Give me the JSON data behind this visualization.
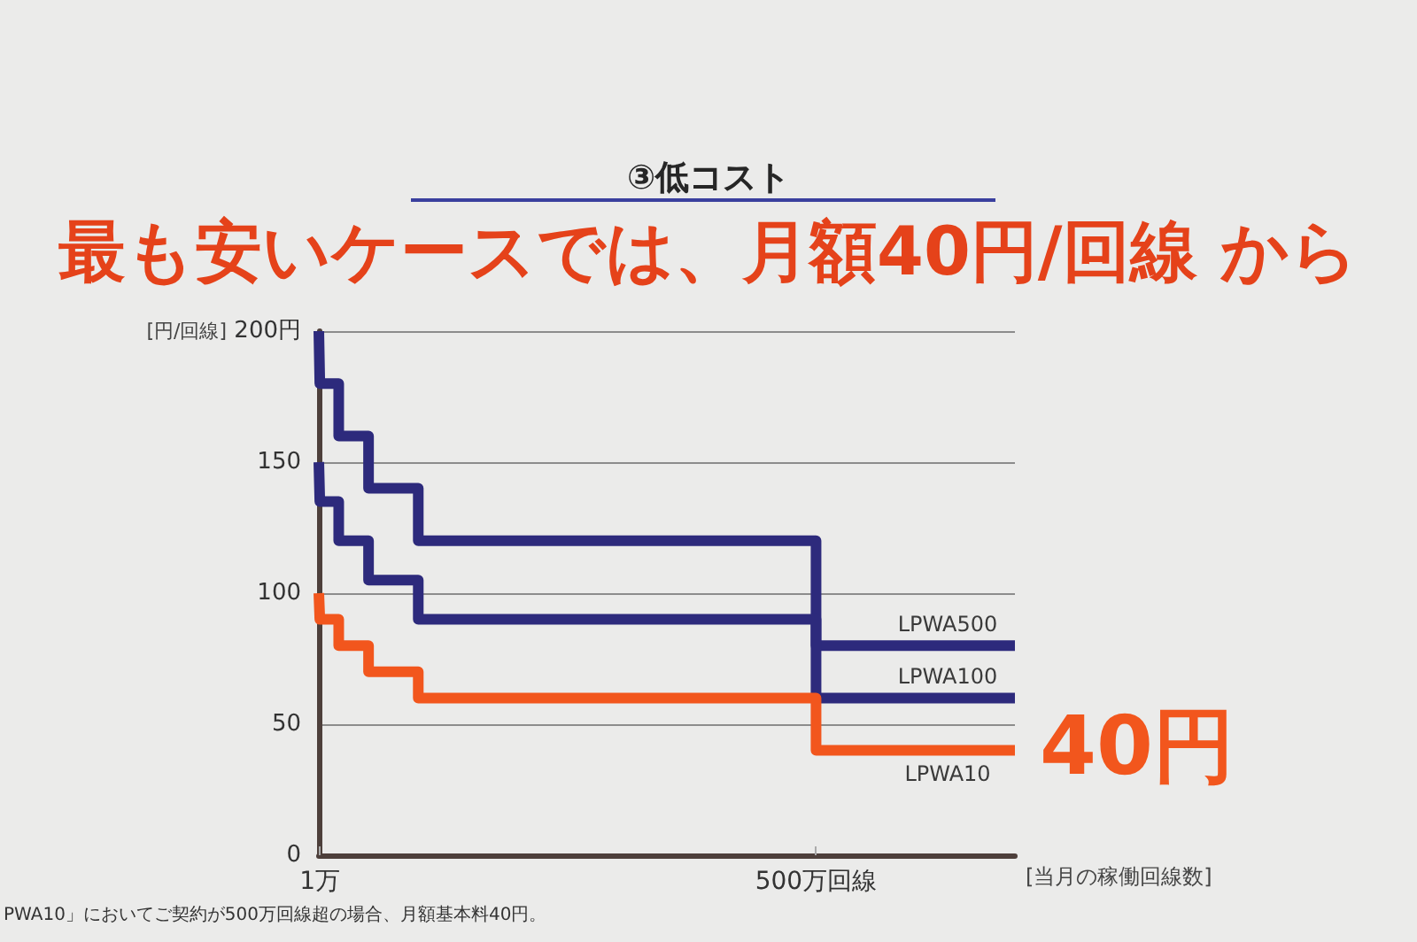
{
  "chart_data": {
    "type": "step",
    "title": "③低コスト",
    "subtitle": "最も安いケースでは、月額40円/回線 から",
    "xlabel": "[当月の稼働回線数]",
    "ylabel": "[円/回線]",
    "x": [
      0,
      1,
      20,
      50,
      100,
      500,
      700
    ],
    "series": [
      {
        "name": "LPWA500",
        "color": "#2d2a7c",
        "values": [
          200,
          180,
          160,
          140,
          120,
          80,
          80
        ]
      },
      {
        "name": "LPWA100",
        "color": "#2d2a7c",
        "values": [
          150,
          135,
          120,
          105,
          90,
          60,
          60
        ]
      },
      {
        "name": "LPWA10",
        "color": "#f2561d",
        "values": [
          100,
          90,
          80,
          70,
          60,
          40,
          40
        ]
      }
    ],
    "xlim": [
      0,
      700
    ],
    "xticks": [
      {
        "value": 1,
        "label": "1万"
      },
      {
        "value": 500,
        "label": "500万回線"
      }
    ],
    "ylim": [
      0,
      200
    ],
    "yticks": [
      0,
      50,
      100,
      150,
      {
        "value": 200,
        "label": "200円"
      }
    ],
    "grid": "y",
    "marker": "none",
    "line_style": "solid",
    "annotations": [
      {
        "text": "40円",
        "x": 700,
        "y": 40
      },
      "PWA10」においてご契約が500万回線超の場合、月額基本料40円。"
    ]
  }
}
